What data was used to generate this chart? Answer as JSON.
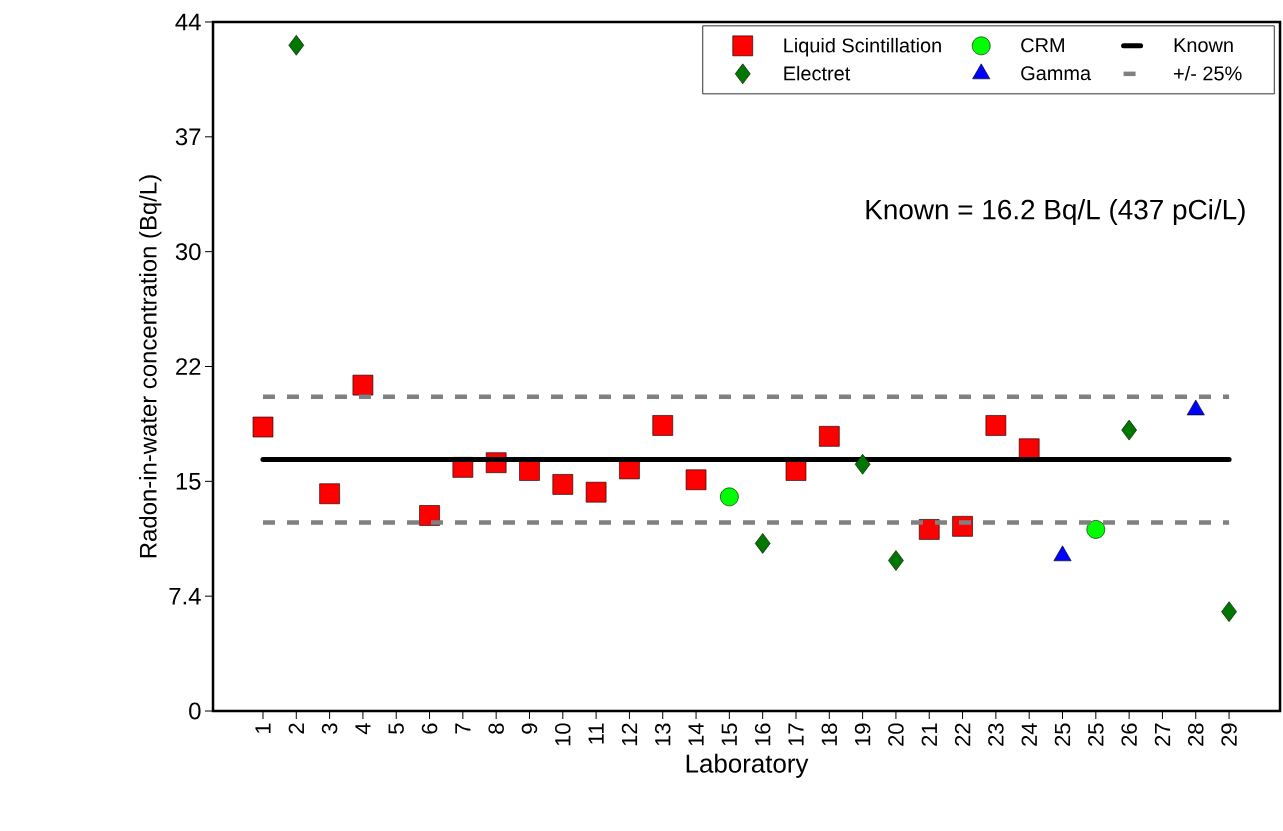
{
  "chart_data": {
    "type": "scatter",
    "xlabel": "Laboratory",
    "ylabel": "Radon-in-water concentration (Bq/L)",
    "annotations": [
      "Known = 16.2 Bq/L  (437 pCi/L)"
    ],
    "categories": [
      "1",
      "2",
      "3",
      "4",
      "5",
      "6",
      "7",
      "8",
      "9",
      "10",
      "11",
      "12",
      "13",
      "14",
      "15",
      "16",
      "17",
      "18",
      "19",
      "20",
      "21",
      "22",
      "23",
      "24",
      "25",
      "25",
      "26",
      "27",
      "28",
      "29"
    ],
    "ylim": [
      0,
      44.4
    ],
    "yticks": [
      0,
      7.4,
      {
        "value": 14.8,
        "label": "15"
      },
      {
        "value": 22.2,
        "label": "22"
      },
      {
        "value": 29.6,
        "label": "30"
      },
      37,
      {
        "value": 44.4,
        "label": "44"
      }
    ],
    "legend": "top right",
    "series": [
      {
        "name": "Liquid Scintillation",
        "marker": "square",
        "color": "#ff0000",
        "values": [
          18.3,
          null,
          14.0,
          21.0,
          null,
          12.6,
          15.7,
          16.0,
          15.5,
          14.6,
          14.1,
          15.6,
          18.4,
          14.9,
          null,
          null,
          15.5,
          17.7,
          null,
          null,
          11.7,
          11.9,
          18.4,
          16.9,
          null,
          null,
          null,
          null,
          null,
          null
        ]
      },
      {
        "name": "CRM",
        "marker": "circle",
        "color": "#00ff00",
        "values": [
          null,
          null,
          null,
          null,
          null,
          null,
          null,
          null,
          null,
          null,
          null,
          null,
          null,
          null,
          13.8,
          null,
          null,
          null,
          null,
          null,
          null,
          null,
          null,
          null,
          null,
          11.7,
          null,
          null,
          null,
          null
        ]
      },
      {
        "name": "Known",
        "type": "line",
        "line_style": "solid",
        "color": "#000000",
        "values": [
          16.2,
          16.2,
          16.2,
          16.2,
          16.2,
          16.2,
          16.2,
          16.2,
          16.2,
          16.2,
          16.2,
          16.2,
          16.2,
          16.2,
          16.2,
          16.2,
          16.2,
          16.2,
          16.2,
          16.2,
          16.2,
          16.2,
          16.2,
          16.2,
          16.2,
          16.2,
          16.2,
          16.2,
          16.2,
          16.2
        ]
      },
      {
        "name": "Electret",
        "marker": "diamond",
        "color": "#007800",
        "values": [
          null,
          42.9,
          null,
          null,
          null,
          null,
          null,
          null,
          null,
          null,
          null,
          null,
          null,
          null,
          null,
          10.8,
          null,
          null,
          15.9,
          9.7,
          null,
          null,
          null,
          null,
          null,
          null,
          18.1,
          null,
          null,
          6.4
        ]
      },
      {
        "name": "Gamma",
        "marker": "triangle",
        "color": "#0000ff",
        "values": [
          null,
          null,
          null,
          null,
          null,
          null,
          null,
          null,
          null,
          null,
          null,
          null,
          null,
          null,
          null,
          null,
          null,
          null,
          null,
          null,
          null,
          null,
          null,
          null,
          10.0,
          null,
          null,
          null,
          19.4,
          null
        ]
      },
      {
        "name": "+/- 25%",
        "type": "line",
        "line_style": "dashed",
        "color": "#808080",
        "values": [
          20.25,
          20.25,
          20.25,
          20.25,
          20.25,
          20.25,
          20.25,
          20.25,
          20.25,
          20.25,
          20.25,
          20.25,
          20.25,
          20.25,
          20.25,
          20.25,
          20.25,
          20.25,
          20.25,
          20.25,
          20.25,
          20.25,
          20.25,
          20.25,
          20.25,
          20.25,
          20.25,
          20.25,
          20.25,
          20.25
        ]
      },
      {
        "type": "line",
        "line_style": "dashed",
        "color": "#808080",
        "values": [
          12.15,
          12.15,
          12.15,
          12.15,
          12.15,
          12.15,
          12.15,
          12.15,
          12.15,
          12.15,
          12.15,
          12.15,
          12.15,
          12.15,
          12.15,
          12.15,
          12.15,
          12.15,
          12.15,
          12.15,
          12.15,
          12.15,
          12.15,
          12.15,
          12.15,
          12.15,
          12.15,
          12.15,
          12.15,
          12.15
        ]
      }
    ]
  }
}
